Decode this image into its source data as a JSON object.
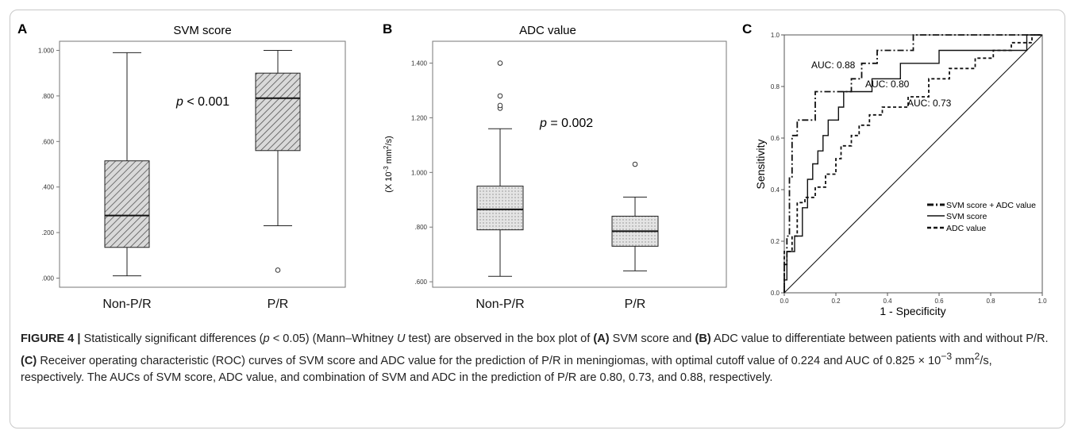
{
  "figure": {
    "caption": {
      "label": "FIGURE 4 |",
      "text_1": " Statistically significant differences (",
      "p_symbol": "p",
      "text_2": " < 0.05) (Mann–Whitney ",
      "u_symbol": "U",
      "text_3": " test) are observed in the box plot of ",
      "ref_a": "(A)",
      "text_4": " SVM score and ",
      "ref_b": "(B)",
      "text_5": " ADC value to differentiate between patients with and without P/R. ",
      "ref_c": "(C)",
      "text_6": " Receiver operating characteristic (ROC) curves of SVM score and ADC value for the prediction of P/R in meningiomas, with optimal cutoff value of 0.224 and AUC of 0.825 × 10",
      "sup_exp": "−3",
      "text_7": " mm",
      "sup_2": "2",
      "text_8": "/s, respectively. The AUCs of SVM score, ADC value, and combination of SVM and ADC in the prediction of P/R are 0.80, 0.73, and 0.88, respectively."
    }
  },
  "chart_data": [
    {
      "panel": "A",
      "type": "box",
      "title": "SVM score",
      "categories": [
        "Non-P/R",
        "P/R"
      ],
      "boxes": [
        {
          "category": "Non-P/R",
          "min": 0.01,
          "q1": 0.135,
          "median": 0.275,
          "q3": 0.515,
          "max": 0.99,
          "outliers": []
        },
        {
          "category": "P/R",
          "min": 0.23,
          "q1": 0.56,
          "median": 0.79,
          "q3": 0.9,
          "max": 1.0,
          "outliers": [
            0.035
          ]
        }
      ],
      "ylim": [
        -0.04,
        1.04
      ],
      "yticks": [
        0.0,
        0.2,
        0.4,
        0.6,
        0.8,
        1.0
      ],
      "ytick_labels": [
        ".000",
        ".200",
        ".400",
        ".600",
        ".800",
        "1.000"
      ],
      "annotation": {
        "p_symbol": "p",
        "rest": " < 0.001"
      }
    },
    {
      "panel": "B",
      "type": "box",
      "title": "ADC value",
      "ylabel_prefix": "(X 10",
      "ylabel_exp": "-3",
      "ylabel_mid": " mm",
      "ylabel_sq": "2",
      "ylabel_suffix": "/s)",
      "categories": [
        "Non-P/R",
        "P/R"
      ],
      "boxes": [
        {
          "category": "Non-P/R",
          "min": 0.62,
          "q1": 0.79,
          "median": 0.865,
          "q3": 0.95,
          "max": 1.16,
          "outliers": [
            1.235,
            1.245,
            1.28,
            1.4
          ]
        },
        {
          "category": "P/R",
          "min": 0.64,
          "q1": 0.73,
          "median": 0.785,
          "q3": 0.84,
          "max": 0.91,
          "outliers": [
            1.03
          ]
        }
      ],
      "ylim": [
        0.58,
        1.48
      ],
      "yticks": [
        0.6,
        0.8,
        1.0,
        1.2,
        1.4
      ],
      "ytick_labels": [
        ".600",
        ".800",
        "1.000",
        "1.200",
        "1.400"
      ],
      "annotation": {
        "p_symbol": "p",
        "rest": " = 0.002"
      }
    },
    {
      "panel": "C",
      "type": "line",
      "xlabel": "1 - Specificity",
      "ylabel": "Sensitivity",
      "xlim": [
        0,
        1
      ],
      "ylim": [
        0,
        1
      ],
      "xticks": [
        0.0,
        0.2,
        0.4,
        0.6,
        0.8,
        1.0
      ],
      "xtick_labels": [
        "0.0",
        "0.2",
        "0.4",
        "0.6",
        "0.8",
        "1.0"
      ],
      "yticks": [
        0.0,
        0.2,
        0.4,
        0.6,
        0.8,
        1.0
      ],
      "ytick_labels": [
        "0.0",
        "0.2",
        "0.4",
        "0.6",
        "0.8",
        "1.0"
      ],
      "legend_position": "lower-right",
      "series": [
        {
          "name": "SVM score + ADC value",
          "dash": "dashdot",
          "auc_label": "AUC: 0.88",
          "points": [
            [
              0,
              0
            ],
            [
              0,
              0.11
            ],
            [
              0.01,
              0.11
            ],
            [
              0.01,
              0.22
            ],
            [
              0.02,
              0.22
            ],
            [
              0.02,
              0.45
            ],
            [
              0.03,
              0.45
            ],
            [
              0.03,
              0.61
            ],
            [
              0.05,
              0.61
            ],
            [
              0.05,
              0.67
            ],
            [
              0.12,
              0.67
            ],
            [
              0.12,
              0.78
            ],
            [
              0.26,
              0.78
            ],
            [
              0.26,
              0.83
            ],
            [
              0.3,
              0.83
            ],
            [
              0.3,
              0.89
            ],
            [
              0.36,
              0.89
            ],
            [
              0.36,
              0.94
            ],
            [
              0.5,
              0.94
            ],
            [
              0.5,
              1.0
            ],
            [
              1,
              1
            ]
          ]
        },
        {
          "name": "SVM score",
          "dash": "solid",
          "auc_label": "AUC: 0.80",
          "points": [
            [
              0,
              0
            ],
            [
              0,
              0.05
            ],
            [
              0.01,
              0.05
            ],
            [
              0.01,
              0.16
            ],
            [
              0.04,
              0.16
            ],
            [
              0.04,
              0.22
            ],
            [
              0.07,
              0.22
            ],
            [
              0.07,
              0.33
            ],
            [
              0.09,
              0.33
            ],
            [
              0.09,
              0.44
            ],
            [
              0.11,
              0.44
            ],
            [
              0.11,
              0.5
            ],
            [
              0.13,
              0.5
            ],
            [
              0.13,
              0.55
            ],
            [
              0.15,
              0.55
            ],
            [
              0.15,
              0.61
            ],
            [
              0.17,
              0.61
            ],
            [
              0.17,
              0.67
            ],
            [
              0.21,
              0.67
            ],
            [
              0.21,
              0.72
            ],
            [
              0.23,
              0.72
            ],
            [
              0.23,
              0.78
            ],
            [
              0.34,
              0.78
            ],
            [
              0.34,
              0.83
            ],
            [
              0.45,
              0.83
            ],
            [
              0.45,
              0.89
            ],
            [
              0.6,
              0.89
            ],
            [
              0.6,
              0.94
            ],
            [
              0.94,
              0.94
            ],
            [
              0.94,
              1.0
            ],
            [
              1,
              1
            ]
          ]
        },
        {
          "name": "ADC value",
          "dash": "dashed",
          "auc_label": "AUC: 0.73",
          "points": [
            [
              0,
              0
            ],
            [
              0,
              0.16
            ],
            [
              0.03,
              0.16
            ],
            [
              0.03,
              0.22
            ],
            [
              0.05,
              0.22
            ],
            [
              0.05,
              0.35
            ],
            [
              0.08,
              0.35
            ],
            [
              0.08,
              0.37
            ],
            [
              0.12,
              0.37
            ],
            [
              0.12,
              0.41
            ],
            [
              0.16,
              0.41
            ],
            [
              0.16,
              0.46
            ],
            [
              0.2,
              0.46
            ],
            [
              0.2,
              0.52
            ],
            [
              0.22,
              0.52
            ],
            [
              0.22,
              0.57
            ],
            [
              0.26,
              0.57
            ],
            [
              0.26,
              0.61
            ],
            [
              0.29,
              0.61
            ],
            [
              0.29,
              0.65
            ],
            [
              0.33,
              0.65
            ],
            [
              0.33,
              0.69
            ],
            [
              0.38,
              0.69
            ],
            [
              0.38,
              0.72
            ],
            [
              0.48,
              0.72
            ],
            [
              0.48,
              0.76
            ],
            [
              0.56,
              0.76
            ],
            [
              0.56,
              0.83
            ],
            [
              0.64,
              0.83
            ],
            [
              0.64,
              0.87
            ],
            [
              0.74,
              0.87
            ],
            [
              0.74,
              0.91
            ],
            [
              0.81,
              0.91
            ],
            [
              0.81,
              0.94
            ],
            [
              0.88,
              0.94
            ],
            [
              0.88,
              0.97
            ],
            [
              0.96,
              0.97
            ],
            [
              0.96,
              1.0
            ],
            [
              1,
              1
            ]
          ]
        }
      ]
    }
  ]
}
